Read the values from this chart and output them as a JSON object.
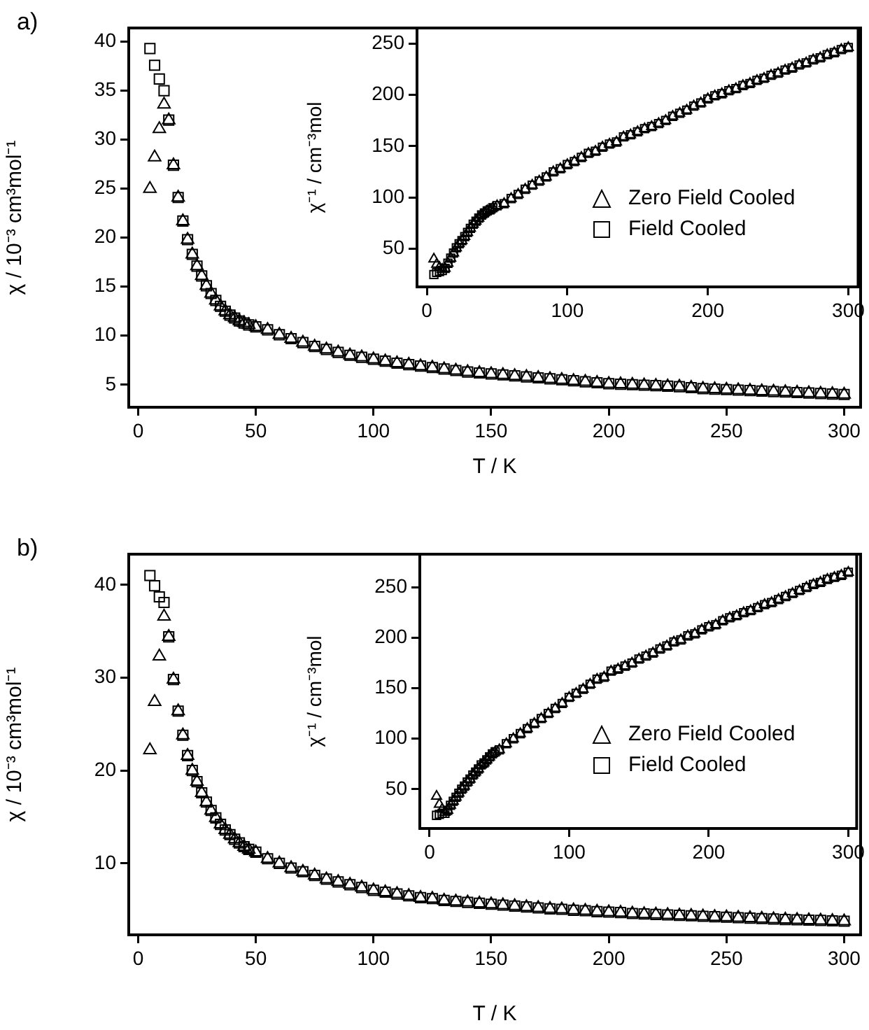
{
  "chart_data": [
    {
      "type": "scatter",
      "title": "a)",
      "xlabel": "T / K",
      "ylabel": "χ / 10⁻³ cm³mol⁻¹",
      "xlim": [
        -4,
        307
      ],
      "ylim": [
        2.7,
        41.4
      ],
      "xticks": [
        0,
        50,
        100,
        150,
        200,
        250,
        300
      ],
      "yticks": [
        5,
        10,
        15,
        20,
        25,
        30,
        35,
        40
      ],
      "x": [
        5,
        7,
        9,
        11,
        13,
        15,
        17,
        19,
        21,
        23,
        25,
        27,
        29,
        31,
        33,
        35,
        37,
        39,
        41,
        43,
        45,
        47,
        50,
        55,
        60,
        65,
        70,
        75,
        80,
        85,
        90,
        95,
        100,
        105,
        110,
        115,
        120,
        125,
        130,
        135,
        140,
        145,
        150,
        155,
        160,
        165,
        170,
        175,
        180,
        185,
        190,
        195,
        200,
        205,
        210,
        215,
        220,
        225,
        230,
        235,
        240,
        245,
        250,
        255,
        260,
        265,
        270,
        275,
        280,
        285,
        290,
        295,
        300
      ],
      "series": [
        {
          "color": "#000000",
          "marker": "triangle",
          "values": [
            25.0,
            28.2,
            31.1,
            33.6,
            32.0,
            27.4,
            24.1,
            21.7,
            19.8,
            18.3,
            17.1,
            16.1,
            15.1,
            14.3,
            13.6,
            13.0,
            12.5,
            12.1,
            11.8,
            11.5,
            11.3,
            11.1,
            10.9,
            10.6,
            10.1,
            9.7,
            9.3,
            8.9,
            8.6,
            8.3,
            8.0,
            7.8,
            7.6,
            7.4,
            7.2,
            7.05,
            6.9,
            6.75,
            6.6,
            6.45,
            6.3,
            6.2,
            6.1,
            6.0,
            5.9,
            5.8,
            5.7,
            5.6,
            5.5,
            5.4,
            5.3,
            5.2,
            5.1,
            5.05,
            5.0,
            4.95,
            4.9,
            4.85,
            4.8,
            4.7,
            4.6,
            4.55,
            4.5,
            4.45,
            4.4,
            4.35,
            4.3,
            4.25,
            4.2,
            4.15,
            4.1,
            4.05,
            4.0
          ]
        },
        {
          "color": "#000000",
          "marker": "square",
          "values": [
            39.3,
            37.6,
            36.2,
            35.0,
            32.0,
            27.4,
            24.1,
            21.7,
            19.8,
            18.3,
            17.1,
            16.1,
            15.1,
            14.3,
            13.6,
            13.0,
            12.5,
            12.1,
            11.8,
            11.5,
            11.3,
            11.1,
            10.9,
            10.6,
            10.1,
            9.7,
            9.3,
            8.9,
            8.6,
            8.3,
            8.0,
            7.8,
            7.6,
            7.4,
            7.2,
            7.05,
            6.9,
            6.75,
            6.6,
            6.45,
            6.3,
            6.2,
            6.1,
            6.0,
            5.9,
            5.8,
            5.7,
            5.6,
            5.5,
            5.4,
            5.3,
            5.2,
            5.1,
            5.05,
            5.0,
            4.95,
            4.9,
            4.85,
            4.8,
            4.7,
            4.6,
            4.55,
            4.5,
            4.45,
            4.4,
            4.35,
            4.3,
            4.25,
            4.2,
            4.15,
            4.1,
            4.05,
            4.0
          ]
        }
      ]
    },
    {
      "type": "scatter",
      "ylabel": "χ⁻¹ / cm⁻³mol",
      "xlim": [
        -7,
        307
      ],
      "ylim": [
        13,
        265
      ],
      "xticks": [
        0,
        100,
        200,
        300
      ],
      "yticks": [
        50,
        100,
        150,
        200,
        250
      ],
      "legend": "right",
      "x": [
        5,
        7,
        9,
        11,
        13,
        15,
        17,
        19,
        21,
        23,
        25,
        27,
        29,
        31,
        33,
        35,
        37,
        39,
        41,
        43,
        45,
        47,
        50,
        55,
        60,
        65,
        70,
        75,
        80,
        85,
        90,
        95,
        100,
        105,
        110,
        115,
        120,
        125,
        130,
        135,
        140,
        145,
        150,
        155,
        160,
        165,
        170,
        175,
        180,
        185,
        190,
        195,
        200,
        205,
        210,
        215,
        220,
        225,
        230,
        235,
        240,
        245,
        250,
        255,
        260,
        265,
        270,
        275,
        280,
        285,
        290,
        295,
        300
      ],
      "series": [
        {
          "name": "Zero Field Cooled",
          "color": "#000000",
          "marker": "triangle",
          "values": [
            40,
            35,
            32,
            30,
            31,
            36,
            41,
            46,
            51,
            55,
            58,
            62,
            66,
            70,
            74,
            77,
            80,
            83,
            85,
            87,
            88,
            90,
            92,
            94,
            99,
            103,
            108,
            112,
            116,
            120,
            125,
            128,
            132,
            135,
            139,
            143,
            145,
            149,
            152,
            154,
            159,
            161,
            164,
            167,
            169,
            172,
            175,
            179,
            182,
            185,
            189,
            192,
            196,
            199,
            201,
            204,
            206,
            209,
            211,
            214,
            216,
            219,
            221,
            224,
            226,
            229,
            231,
            234,
            236,
            239,
            241,
            244,
            246
          ]
        },
        {
          "name": "Field Cooled",
          "color": "#000000",
          "marker": "square",
          "values": [
            25,
            27,
            28,
            29,
            31,
            36,
            41,
            46,
            51,
            55,
            58,
            62,
            66,
            70,
            74,
            77,
            80,
            83,
            85,
            87,
            88,
            90,
            92,
            94,
            99,
            103,
            108,
            112,
            116,
            120,
            125,
            128,
            132,
            135,
            139,
            143,
            145,
            149,
            152,
            154,
            159,
            161,
            164,
            167,
            169,
            172,
            175,
            179,
            182,
            185,
            189,
            192,
            196,
            199,
            201,
            204,
            206,
            209,
            211,
            214,
            216,
            219,
            221,
            224,
            226,
            229,
            231,
            234,
            236,
            239,
            241,
            244,
            246
          ]
        }
      ]
    },
    {
      "type": "scatter",
      "title": "b)",
      "xlabel": "T / K",
      "ylabel": "χ / 10⁻³ cm³mol⁻¹",
      "xlim": [
        -4,
        307
      ],
      "ylim": [
        2.3,
        43.3
      ],
      "xticks": [
        0,
        50,
        100,
        150,
        200,
        250,
        300
      ],
      "yticks": [
        10,
        20,
        30,
        40
      ],
      "x": [
        5,
        7,
        9,
        11,
        13,
        15,
        17,
        19,
        21,
        23,
        25,
        27,
        29,
        31,
        33,
        35,
        37,
        39,
        41,
        43,
        45,
        47,
        50,
        55,
        60,
        65,
        70,
        75,
        80,
        85,
        90,
        95,
        100,
        105,
        110,
        115,
        120,
        125,
        130,
        135,
        140,
        145,
        150,
        155,
        160,
        165,
        170,
        175,
        180,
        185,
        190,
        195,
        200,
        205,
        210,
        215,
        220,
        225,
        230,
        235,
        240,
        245,
        250,
        255,
        260,
        265,
        270,
        275,
        280,
        285,
        290,
        295,
        300
      ],
      "series": [
        {
          "color": "#000000",
          "marker": "triangle",
          "values": [
            22.2,
            27.4,
            32.3,
            36.6,
            34.4,
            29.8,
            26.4,
            23.8,
            21.6,
            20.0,
            18.8,
            17.6,
            16.6,
            15.7,
            14.9,
            14.2,
            13.6,
            13.1,
            12.6,
            12.2,
            11.8,
            11.5,
            11.2,
            10.5,
            10.0,
            9.5,
            9.1,
            8.7,
            8.3,
            8.0,
            7.7,
            7.4,
            7.1,
            6.9,
            6.7,
            6.5,
            6.3,
            6.2,
            6.0,
            5.9,
            5.8,
            5.7,
            5.6,
            5.5,
            5.4,
            5.3,
            5.2,
            5.1,
            5.05,
            4.95,
            4.9,
            4.8,
            4.75,
            4.7,
            4.6,
            4.55,
            4.5,
            4.45,
            4.4,
            4.35,
            4.3,
            4.25,
            4.2,
            4.15,
            4.1,
            4.05,
            4.0,
            3.95,
            3.92,
            3.88,
            3.85,
            3.81,
            3.77
          ]
        },
        {
          "color": "#000000",
          "marker": "square",
          "values": [
            41.0,
            39.9,
            38.7,
            38.1,
            34.4,
            29.8,
            26.4,
            23.8,
            21.6,
            20.0,
            18.8,
            17.6,
            16.6,
            15.7,
            14.9,
            14.2,
            13.6,
            13.1,
            12.6,
            12.2,
            11.8,
            11.5,
            11.2,
            10.5,
            10.0,
            9.5,
            9.1,
            8.7,
            8.3,
            8.0,
            7.7,
            7.4,
            7.1,
            6.9,
            6.7,
            6.5,
            6.3,
            6.2,
            6.0,
            5.9,
            5.8,
            5.7,
            5.6,
            5.5,
            5.4,
            5.3,
            5.2,
            5.1,
            5.05,
            4.95,
            4.9,
            4.8,
            4.75,
            4.7,
            4.6,
            4.55,
            4.5,
            4.45,
            4.4,
            4.35,
            4.3,
            4.25,
            4.2,
            4.15,
            4.1,
            4.05,
            4.0,
            3.95,
            3.92,
            3.88,
            3.85,
            3.81,
            3.77
          ]
        }
      ]
    },
    {
      "type": "scatter",
      "ylabel": "χ⁻¹ / cm⁻³mol",
      "xlim": [
        -7,
        306
      ],
      "ylim": [
        11,
        283
      ],
      "xticks": [
        0,
        100,
        200,
        300
      ],
      "yticks": [
        50,
        100,
        150,
        200,
        250
      ],
      "legend": "right",
      "x": [
        5,
        7,
        9,
        11,
        13,
        15,
        17,
        19,
        21,
        23,
        25,
        27,
        29,
        31,
        33,
        35,
        37,
        39,
        41,
        43,
        45,
        47,
        50,
        55,
        60,
        65,
        70,
        75,
        80,
        85,
        90,
        95,
        100,
        105,
        110,
        115,
        120,
        125,
        130,
        135,
        140,
        145,
        150,
        155,
        160,
        165,
        170,
        175,
        180,
        185,
        190,
        195,
        200,
        205,
        210,
        215,
        220,
        225,
        230,
        235,
        240,
        245,
        250,
        255,
        260,
        265,
        270,
        275,
        280,
        285,
        290,
        295,
        300
      ],
      "series": [
        {
          "name": "Zero Field Cooled",
          "color": "#000000",
          "marker": "triangle",
          "values": [
            43,
            35,
            30,
            27,
            29,
            34,
            38,
            42,
            46,
            50,
            53,
            57,
            60,
            64,
            67,
            70,
            74,
            76,
            79,
            82,
            85,
            87,
            89,
            95,
            100,
            105,
            110,
            115,
            120,
            125,
            130,
            135,
            141,
            145,
            149,
            154,
            159,
            161,
            167,
            169,
            172,
            175,
            179,
            182,
            185,
            189,
            192,
            196,
            198,
            202,
            204,
            208,
            211,
            213,
            217,
            220,
            222,
            225,
            227,
            230,
            233,
            235,
            238,
            241,
            244,
            247,
            250,
            253,
            255,
            258,
            260,
            262,
            265
          ]
        },
        {
          "name": "Field Cooled",
          "color": "#000000",
          "marker": "square",
          "values": [
            24,
            25,
            26,
            26,
            29,
            34,
            38,
            42,
            46,
            50,
            53,
            57,
            60,
            64,
            67,
            70,
            74,
            76,
            79,
            82,
            85,
            87,
            89,
            95,
            100,
            105,
            110,
            115,
            120,
            125,
            130,
            135,
            141,
            145,
            149,
            154,
            159,
            161,
            167,
            169,
            172,
            175,
            179,
            182,
            185,
            189,
            192,
            196,
            198,
            202,
            204,
            208,
            211,
            213,
            217,
            220,
            222,
            225,
            227,
            230,
            233,
            235,
            238,
            241,
            244,
            247,
            250,
            253,
            255,
            258,
            260,
            262,
            265
          ]
        }
      ]
    }
  ]
}
